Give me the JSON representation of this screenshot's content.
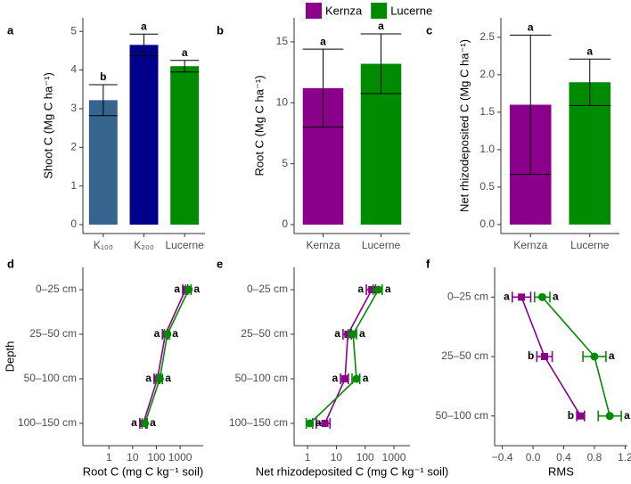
{
  "legend": {
    "labels": [
      "Kernza",
      "Lucerne"
    ],
    "colors": [
      "#8b008b",
      "#008b00"
    ]
  },
  "chart_data": [
    {
      "type": "bar",
      "panel_label": "a",
      "ylabel": "Shoot C (Mg C ha⁻¹)",
      "categories": [
        "K₁₀₀",
        "K₂₀₀",
        "Lucerne"
      ],
      "values": [
        3.22,
        4.65,
        4.1
      ],
      "errors": [
        0.4,
        0.28,
        0.15
      ],
      "letters": [
        "b",
        "a",
        "a"
      ],
      "colors": [
        "#35648e",
        "#00008b",
        "#008b00"
      ],
      "ylim": [
        -0.23,
        5.35
      ],
      "yticks": [
        0,
        1,
        2,
        3,
        4,
        5
      ]
    },
    {
      "type": "bar",
      "panel_label": "b",
      "ylabel": "Root C (Mg C ha⁻¹)",
      "categories": [
        "Kernza",
        "Lucerne"
      ],
      "values": [
        11.2,
        13.2
      ],
      "errors": [
        3.2,
        2.45
      ],
      "letters": [
        "a",
        "a"
      ],
      "colors": [
        "#8b008b",
        "#008b00"
      ],
      "ylim": [
        -0.73,
        16.97
      ],
      "yticks": [
        0,
        5,
        10,
        15
      ]
    },
    {
      "type": "bar",
      "panel_label": "c",
      "ylabel": "Net rhizodeposited C (Mg C ha⁻¹)",
      "categories": [
        "Kernza",
        "Lucerne"
      ],
      "values": [
        1.6,
        1.9
      ],
      "errors": [
        0.93,
        0.31
      ],
      "letters": [
        "a",
        "a"
      ],
      "colors": [
        "#8b008b",
        "#008b00"
      ],
      "ylim": [
        -0.12,
        2.76
      ],
      "yticks": [
        {
          "value": 0,
          "label": "0.0"
        },
        0.5,
        {
          "value": 1,
          "label": "1.0"
        },
        1.5,
        {
          "value": 2,
          "label": "2.0"
        },
        2.5
      ]
    },
    {
      "type": "line",
      "panel_label": "d",
      "ylabel": "Depth",
      "xlabel": "Root C (mg C kg⁻¹ soil)",
      "xscale": "log",
      "categories": [
        "0–25 cm",
        "25–50 cm",
        "50–100 cm",
        "100–150 cm"
      ],
      "series": [
        {
          "color": "#8b008b",
          "marker": "square",
          "values": [
            1700,
            240,
            110,
            28
          ],
          "errors": [
            400,
            60,
            30,
            8
          ],
          "letters": [
            "a",
            "a",
            "a",
            "a"
          ]
        },
        {
          "color": "#008b00",
          "marker": "circle",
          "values": [
            2300,
            290,
            140,
            33
          ],
          "errors": [
            600,
            70,
            40,
            8
          ],
          "letters": [
            "a",
            "a",
            "a",
            "a"
          ]
        }
      ],
      "xlim": [
        0.08,
        9400
      ],
      "xticks": [
        1,
        10,
        100,
        1000
      ]
    },
    {
      "type": "line",
      "panel_label": "e",
      "xlabel": "Net rhizodeposited C (mg C kg⁻¹ soil)",
      "xscale": "log",
      "categories": [
        "0–25 cm",
        "25–50 cm",
        "50–100 cm",
        "100–150 cm"
      ],
      "series": [
        {
          "color": "#8b008b",
          "marker": "square",
          "values": [
            170,
            25,
            20,
            4
          ],
          "errors": [
            60,
            8,
            6,
            2
          ],
          "letters": [
            "a",
            "a",
            "a",
            "a"
          ]
        },
        {
          "color": "#008b00",
          "marker": "circle",
          "values": [
            290,
            38,
            50,
            1.2
          ],
          "errors": [
            100,
            12,
            15,
            0.3
          ],
          "letters": [
            "a",
            "a",
            "a",
            "a"
          ]
        }
      ],
      "xlim": [
        0.34,
        3600
      ],
      "xticks": [
        1,
        10,
        100,
        1000
      ]
    },
    {
      "type": "line",
      "panel_label": "f",
      "xlabel": "RMS",
      "xscale": "linear",
      "categories": [
        "0–25 cm",
        "25–50 cm",
        "50–100 cm"
      ],
      "series": [
        {
          "color": "#8b008b",
          "marker": "square",
          "values": [
            -0.15,
            0.15,
            0.62
          ],
          "errors": [
            0.12,
            0.1,
            0.05
          ],
          "letters": [
            "a",
            "b",
            "b"
          ]
        },
        {
          "color": "#008b00",
          "marker": "circle",
          "values": [
            0.12,
            0.8,
            1.0
          ],
          "errors": [
            0.1,
            0.15,
            0.15
          ],
          "letters": [
            "a",
            "a",
            "a"
          ]
        }
      ],
      "xlim": [
        -0.5,
        1.23
      ],
      "xticks": [
        {
          "value": -0.4,
          "label": "−0.4"
        },
        {
          "value": 0,
          "label": "0.0"
        },
        0.4,
        0.8,
        1.2
      ]
    }
  ]
}
